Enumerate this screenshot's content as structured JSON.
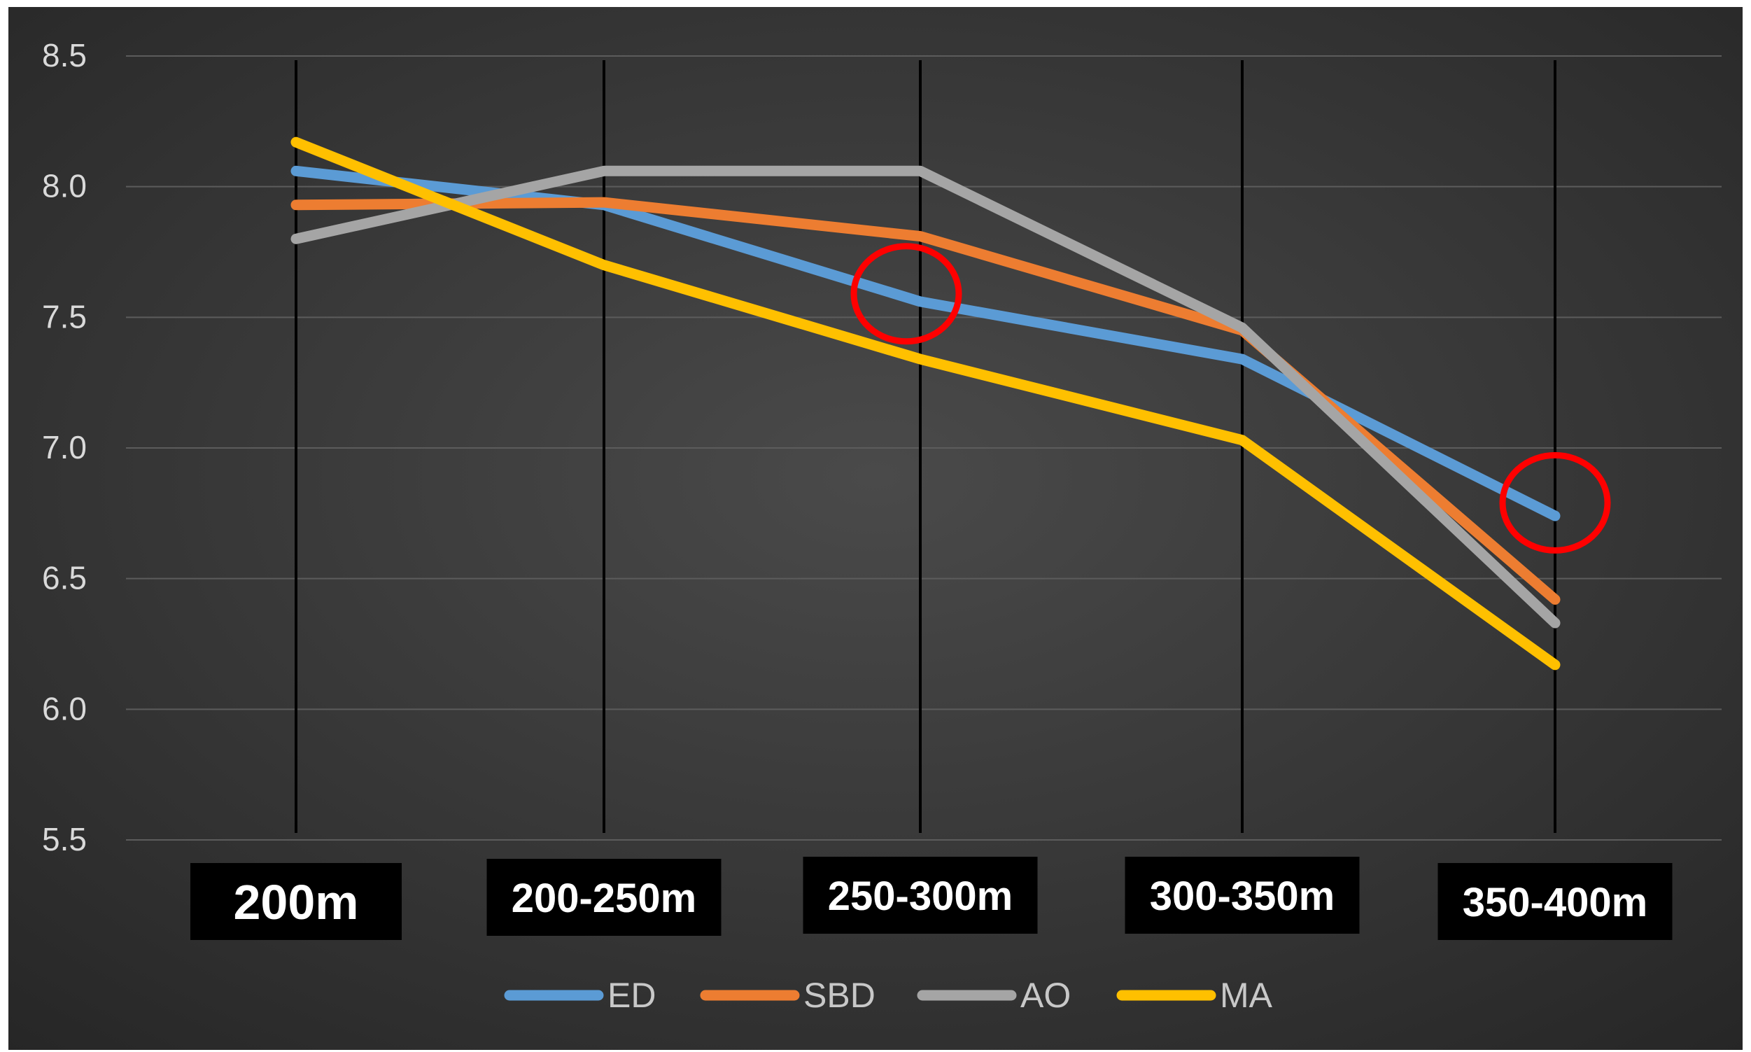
{
  "chart_data": {
    "type": "line",
    "categories": [
      "200m",
      "200-250m",
      "250-300m",
      "300-350m",
      "350-400m"
    ],
    "y_ticks": [
      "5.5",
      "6.0",
      "6.5",
      "7.0",
      "7.5",
      "8.0",
      "8.5"
    ],
    "ylim": [
      5.5,
      8.5
    ],
    "grid": true,
    "legend_position": "bottom",
    "series": [
      {
        "name": "ED",
        "color": "#5b9bd5",
        "values": [
          8.06,
          7.93,
          7.56,
          7.34,
          6.74
        ]
      },
      {
        "name": "SBD",
        "color": "#ed7d31",
        "values": [
          7.93,
          7.94,
          7.81,
          7.45,
          6.42
        ]
      },
      {
        "name": "AO",
        "color": "#a5a5a5",
        "values": [
          7.8,
          8.06,
          8.06,
          7.46,
          6.33
        ]
      },
      {
        "name": "MA",
        "color": "#ffc000",
        "values": [
          8.17,
          7.7,
          7.34,
          7.03,
          6.17
        ]
      }
    ],
    "annotations": [
      {
        "shape": "circle",
        "color": "#ff0000",
        "category": "250-300m",
        "y": 7.59
      },
      {
        "shape": "circle",
        "color": "#ff0000",
        "category": "350-400m",
        "y": 6.79
      }
    ]
  }
}
